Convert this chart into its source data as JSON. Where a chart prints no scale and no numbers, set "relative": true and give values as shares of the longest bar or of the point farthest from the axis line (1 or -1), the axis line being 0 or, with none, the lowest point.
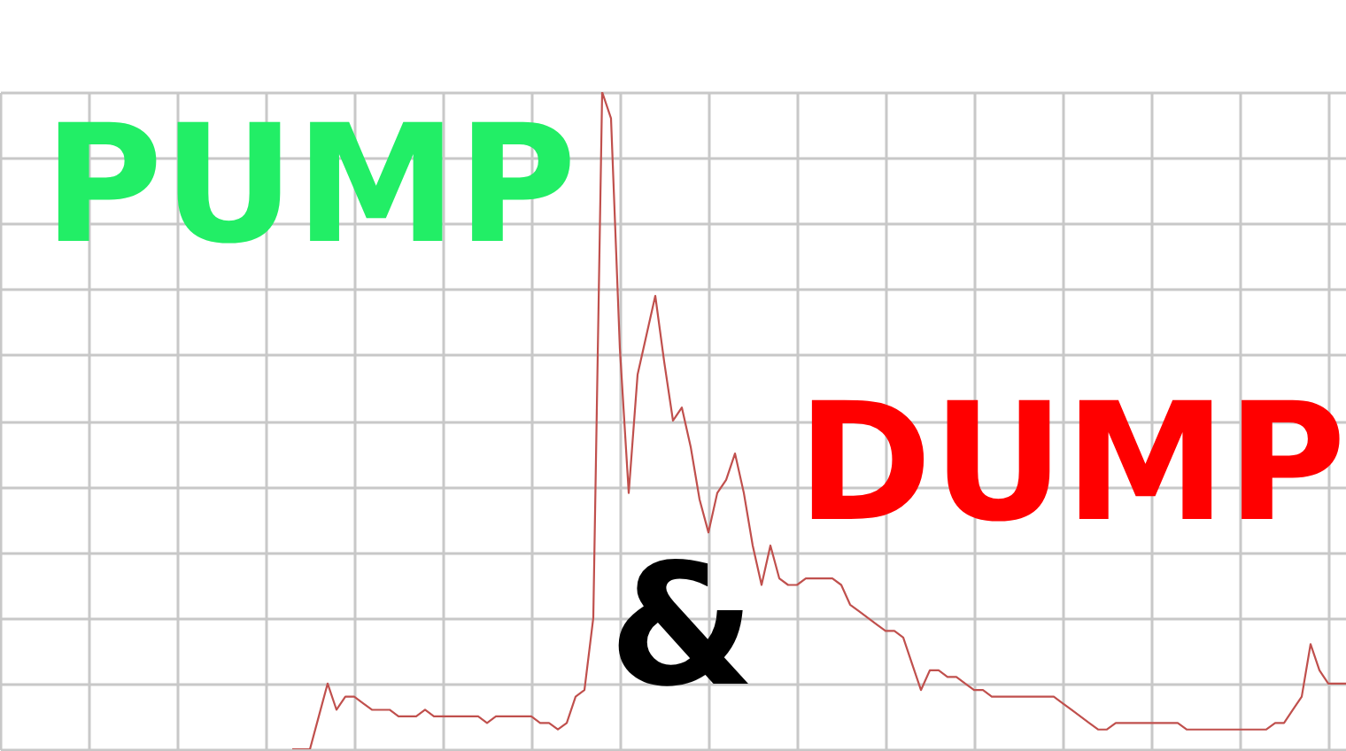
{
  "chart_data": {
    "type": "line",
    "relative": true,
    "grid": true,
    "color": "#c0504d",
    "annotations": [
      "PUMP",
      "&",
      "DUMP"
    ],
    "categories": [
      null,
      null,
      null,
      null,
      null,
      null,
      null,
      null,
      null,
      null,
      null,
      null,
      null,
      null,
      null,
      null,
      null,
      null,
      null,
      null,
      null,
      null,
      null,
      null,
      null,
      null,
      null,
      null,
      null,
      null,
      null,
      null,
      null,
      null,
      null,
      null,
      null,
      null,
      null,
      null,
      null,
      null,
      null,
      null,
      null,
      null,
      null,
      null,
      null,
      null,
      null,
      null,
      null,
      null,
      null,
      null,
      null,
      null,
      null,
      null,
      null,
      null,
      null,
      null,
      null,
      null,
      null,
      null,
      null,
      null,
      null,
      null,
      null,
      null,
      null,
      null,
      null,
      null,
      null,
      null,
      null,
      null,
      null,
      null,
      null,
      null,
      null,
      null,
      null,
      null,
      null,
      null,
      null,
      null,
      null,
      null,
      null,
      null,
      null,
      null,
      null,
      null,
      null,
      null,
      null,
      null,
      null,
      null,
      null,
      null,
      null,
      null,
      null,
      null,
      null,
      null,
      null,
      null,
      null,
      null,
      null,
      null,
      null,
      null,
      null,
      null,
      null,
      null,
      null,
      null,
      null,
      null,
      null,
      null,
      null,
      null,
      null,
      null,
      null,
      null,
      null,
      null,
      null,
      null,
      null,
      null,
      null,
      null,
      null,
      null,
      null,
      null,
      null
    ],
    "values": [
      null,
      null,
      null,
      null,
      null,
      null,
      null,
      null,
      null,
      null,
      null,
      null,
      null,
      null,
      null,
      null,
      null,
      null,
      null,
      null,
      null,
      null,
      null,
      null,
      null,
      null,
      null,
      null,
      null,
      null,
      null,
      null,
      null,
      0,
      0,
      0,
      0.05,
      0.1,
      0.06,
      0.08,
      0.08,
      0.07,
      0.06,
      0.06,
      0.06,
      0.05,
      0.05,
      0.05,
      0.06,
      0.05,
      0.05,
      0.05,
      0.05,
      0.05,
      0.05,
      0.04,
      0.05,
      0.05,
      0.05,
      0.05,
      0.05,
      0.04,
      0.04,
      0.03,
      0.04,
      0.08,
      0.09,
      0.2,
      1.0,
      0.96,
      0.61,
      0.39,
      0.57,
      0.63,
      0.69,
      0.59,
      0.5,
      0.52,
      0.46,
      0.38,
      0.33,
      0.39,
      0.41,
      0.45,
      0.39,
      0.31,
      0.25,
      0.31,
      0.26,
      0.25,
      0.25,
      0.26,
      0.26,
      0.26,
      0.26,
      0.25,
      0.22,
      0.21,
      0.2,
      0.19,
      0.18,
      0.18,
      0.17,
      0.13,
      0.09,
      0.12,
      0.12,
      0.11,
      0.11,
      0.1,
      0.09,
      0.09,
      0.08,
      0.08,
      0.08,
      0.08,
      0.08,
      0.08,
      0.08,
      0.08,
      0.07,
      0.06,
      0.05,
      0.04,
      0.03,
      0.03,
      0.04,
      0.04,
      0.04,
      0.04,
      0.04,
      0.04,
      0.04,
      0.04,
      0.03,
      0.03,
      0.03,
      0.03,
      0.03,
      0.03,
      0.03,
      0.03,
      0.03,
      0.03,
      0.04,
      0.04,
      0.06,
      0.08,
      0.16,
      0.12,
      0.1,
      0.1,
      0.1
    ]
  }
}
